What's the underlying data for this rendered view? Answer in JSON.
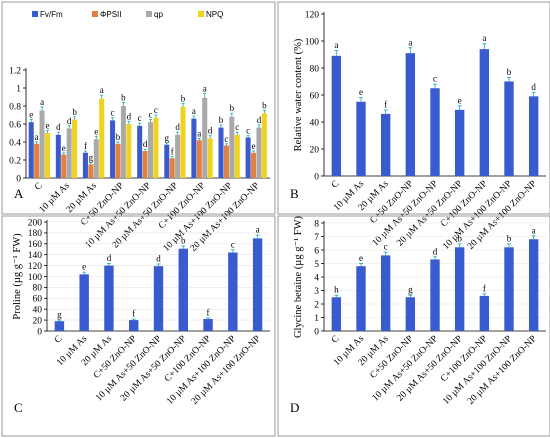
{
  "colors": {
    "fvfm": "#3a5bd0",
    "phipsii": "#e2813f",
    "qp": "#a9a9a9",
    "npq": "#f0d31f",
    "single": "#3a5bd0",
    "error_bar": "#1aa7b8"
  },
  "chart_data": [
    {
      "type": "bar",
      "panel_label": "A",
      "xlabel": "",
      "ylabel": "",
      "ylim": [
        0,
        1.2
      ],
      "yticks": [
        "0",
        "0.2",
        "0.4",
        "0.6",
        "0.8",
        "1",
        "1.2"
      ],
      "grid": false,
      "legend": "top",
      "categories": [
        "C",
        "10 µM As",
        "20 µM As",
        "C+50 ZnO-NP",
        "10 µM As+50 ZnO-NP",
        "20 µM As+50 ZnO-NP",
        "C+100 ZnO-NP",
        "10 µM As+100 ZnO-NP",
        "20 µM As+100 ZnO-NP"
      ],
      "series": [
        {
          "name": "Fv/Fm",
          "color": "fvfm",
          "values": [
            0.62,
            0.48,
            0.28,
            0.64,
            0.58,
            0.37,
            0.66,
            0.56,
            0.45
          ],
          "errors": [
            0.03,
            0.03,
            0.02,
            0.03,
            0.03,
            0.02,
            0.03,
            0.03,
            0.02
          ],
          "letters": [
            "e",
            "d",
            "f",
            "c",
            "c",
            "g",
            "a",
            "b",
            "c"
          ]
        },
        {
          "name": "ΦPSII",
          "color": "phipsii",
          "values": [
            0.38,
            0.26,
            0.15,
            0.38,
            0.3,
            0.22,
            0.42,
            0.36,
            0.28
          ],
          "errors": [
            0.02,
            0.02,
            0.02,
            0.02,
            0.02,
            0.02,
            0.02,
            0.02,
            0.02
          ],
          "letters": [
            "a",
            "e",
            "g",
            "b",
            "d",
            "f",
            "a",
            "c",
            "e"
          ]
        },
        {
          "name": "qp",
          "color": "qp",
          "values": [
            0.75,
            0.55,
            0.43,
            0.8,
            0.62,
            0.48,
            0.89,
            0.68,
            0.56
          ],
          "errors": [
            0.04,
            0.03,
            0.03,
            0.04,
            0.03,
            0.03,
            0.05,
            0.04,
            0.03
          ],
          "letters": [
            "a",
            "d",
            "e",
            "b",
            "c",
            "d",
            "a",
            "b",
            "d"
          ]
        },
        {
          "name": "NPQ",
          "color": "npq",
          "values": [
            0.5,
            0.65,
            0.88,
            0.6,
            0.67,
            0.79,
            0.44,
            0.48,
            0.72
          ],
          "errors": [
            0.03,
            0.03,
            0.04,
            0.03,
            0.03,
            0.04,
            0.03,
            0.03,
            0.03
          ],
          "letters": [
            "e",
            "b",
            "a",
            "d",
            "c",
            "b",
            "d",
            "c",
            "b"
          ]
        }
      ]
    },
    {
      "type": "bar",
      "panel_label": "B",
      "xlabel": "",
      "ylabel": "Relative water content (%)",
      "ylim": [
        0,
        120
      ],
      "yticks": [
        "0",
        "20",
        "40",
        "60",
        "80",
        "100",
        "120"
      ],
      "grid": false,
      "categories": [
        "C",
        "10 µM As",
        "20 µM As",
        "C+50 ZnO-NP",
        "10 µM As+50 ZnO-NP",
        "20 µM As+50 ZnO-NP",
        "C+100 ZnO-NP",
        "10 µM As+100 ZnO-NP",
        "20 µM As+100 ZnO-NP"
      ],
      "values": [
        89,
        55,
        46,
        91,
        65,
        49,
        94,
        70,
        59
      ],
      "errors": [
        4,
        3,
        3,
        4,
        3,
        3,
        4,
        3,
        3
      ],
      "letters": [
        "a",
        "e",
        "f",
        "a",
        "c",
        "e",
        "a",
        "b",
        "d"
      ]
    },
    {
      "type": "bar",
      "panel_label": "C",
      "xlabel": "",
      "ylabel": "Proline (µg g⁻¹ FW)",
      "ylim": [
        0,
        200
      ],
      "yticks": [
        "0",
        "20",
        "40",
        "60",
        "80",
        "100",
        "120",
        "140",
        "160",
        "180",
        "200"
      ],
      "grid": true,
      "categories": [
        "C",
        "10 µM As",
        "20 µM As",
        "C+50 ZnO-NP",
        "10 µM As+50 ZnO-NP",
        "20 µM As+50 ZnO-NP",
        "C+100 ZnO-NP",
        "10 µM As+100 ZnO-NP",
        "20 µM As+100 ZnO-NP"
      ],
      "values": [
        18,
        104,
        120,
        20,
        119,
        151,
        22,
        144,
        170
      ],
      "errors": [
        2,
        4,
        4,
        2,
        4,
        5,
        2,
        5,
        6
      ],
      "letters": [
        "g",
        "e",
        "d",
        "f",
        "d",
        "b",
        "f",
        "c",
        "a"
      ]
    },
    {
      "type": "bar",
      "panel_label": "D",
      "xlabel": "",
      "ylabel": "Glycine betaine (µg g⁻¹ FW)",
      "ylim": [
        0,
        8
      ],
      "yticks": [
        "0",
        "1",
        "2",
        "3",
        "4",
        "5",
        "6",
        "7",
        "8"
      ],
      "grid": true,
      "categories": [
        "C",
        "10 µM As",
        "20 µM As",
        "C+50 ZnO-NP",
        "10 µM As+50 ZnO-NP",
        "20 µM As+50 ZnO-NP",
        "C+100 ZnO-NP",
        "10 µM As+100 ZnO-NP",
        "20 µM As+100 ZnO-NP"
      ],
      "values": [
        2.5,
        4.8,
        5.6,
        2.5,
        5.3,
        6.2,
        2.6,
        6.2,
        6.8
      ],
      "errors": [
        0.15,
        0.2,
        0.25,
        0.15,
        0.2,
        0.25,
        0.15,
        0.25,
        0.25
      ],
      "letters": [
        "h",
        "e",
        "c",
        "g",
        "d",
        "b",
        "f",
        "b",
        "a"
      ]
    }
  ]
}
